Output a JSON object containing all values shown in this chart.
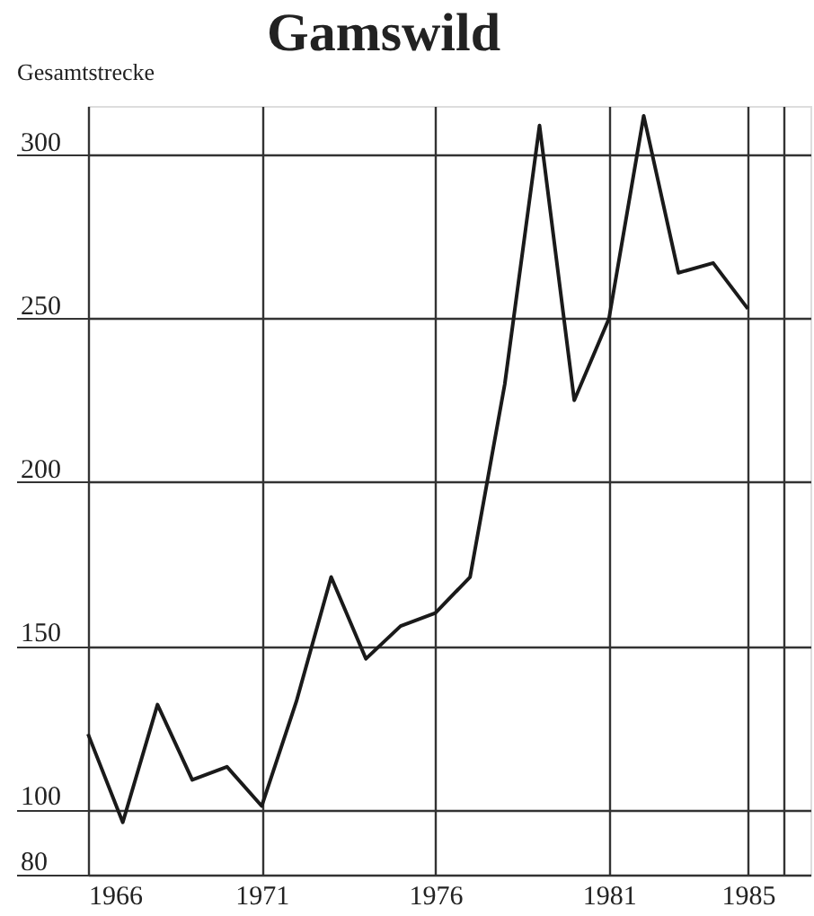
{
  "chart_data": {
    "type": "line",
    "title": "Gamswild",
    "ylabel": "Gesamtstrecke",
    "x": [
      1966,
      1967,
      1968,
      1969,
      1970,
      1971,
      1972,
      1973,
      1974,
      1975,
      1976,
      1977,
      1978,
      1979,
      1980,
      1981,
      1982,
      1983,
      1984,
      1985
    ],
    "series": [
      {
        "color": "#1a1a1a",
        "values": [
          123,
          96,
          132,
          109,
          113,
          101,
          133,
          171,
          146,
          156,
          160,
          171,
          230,
          309,
          225,
          250,
          312,
          264,
          267,
          253
        ]
      }
    ],
    "xlim": [
      1966,
      1986.8
    ],
    "xticks": [
      1966,
      1971,
      1976,
      1981,
      1985,
      {
        "value": 1986,
        "label": null
      }
    ],
    "ylim": [
      80,
      315
    ],
    "yticks": [
      80,
      100,
      150,
      200,
      250,
      300
    ],
    "grid": true,
    "legend": false,
    "marker": "none",
    "line_style": "solid"
  }
}
